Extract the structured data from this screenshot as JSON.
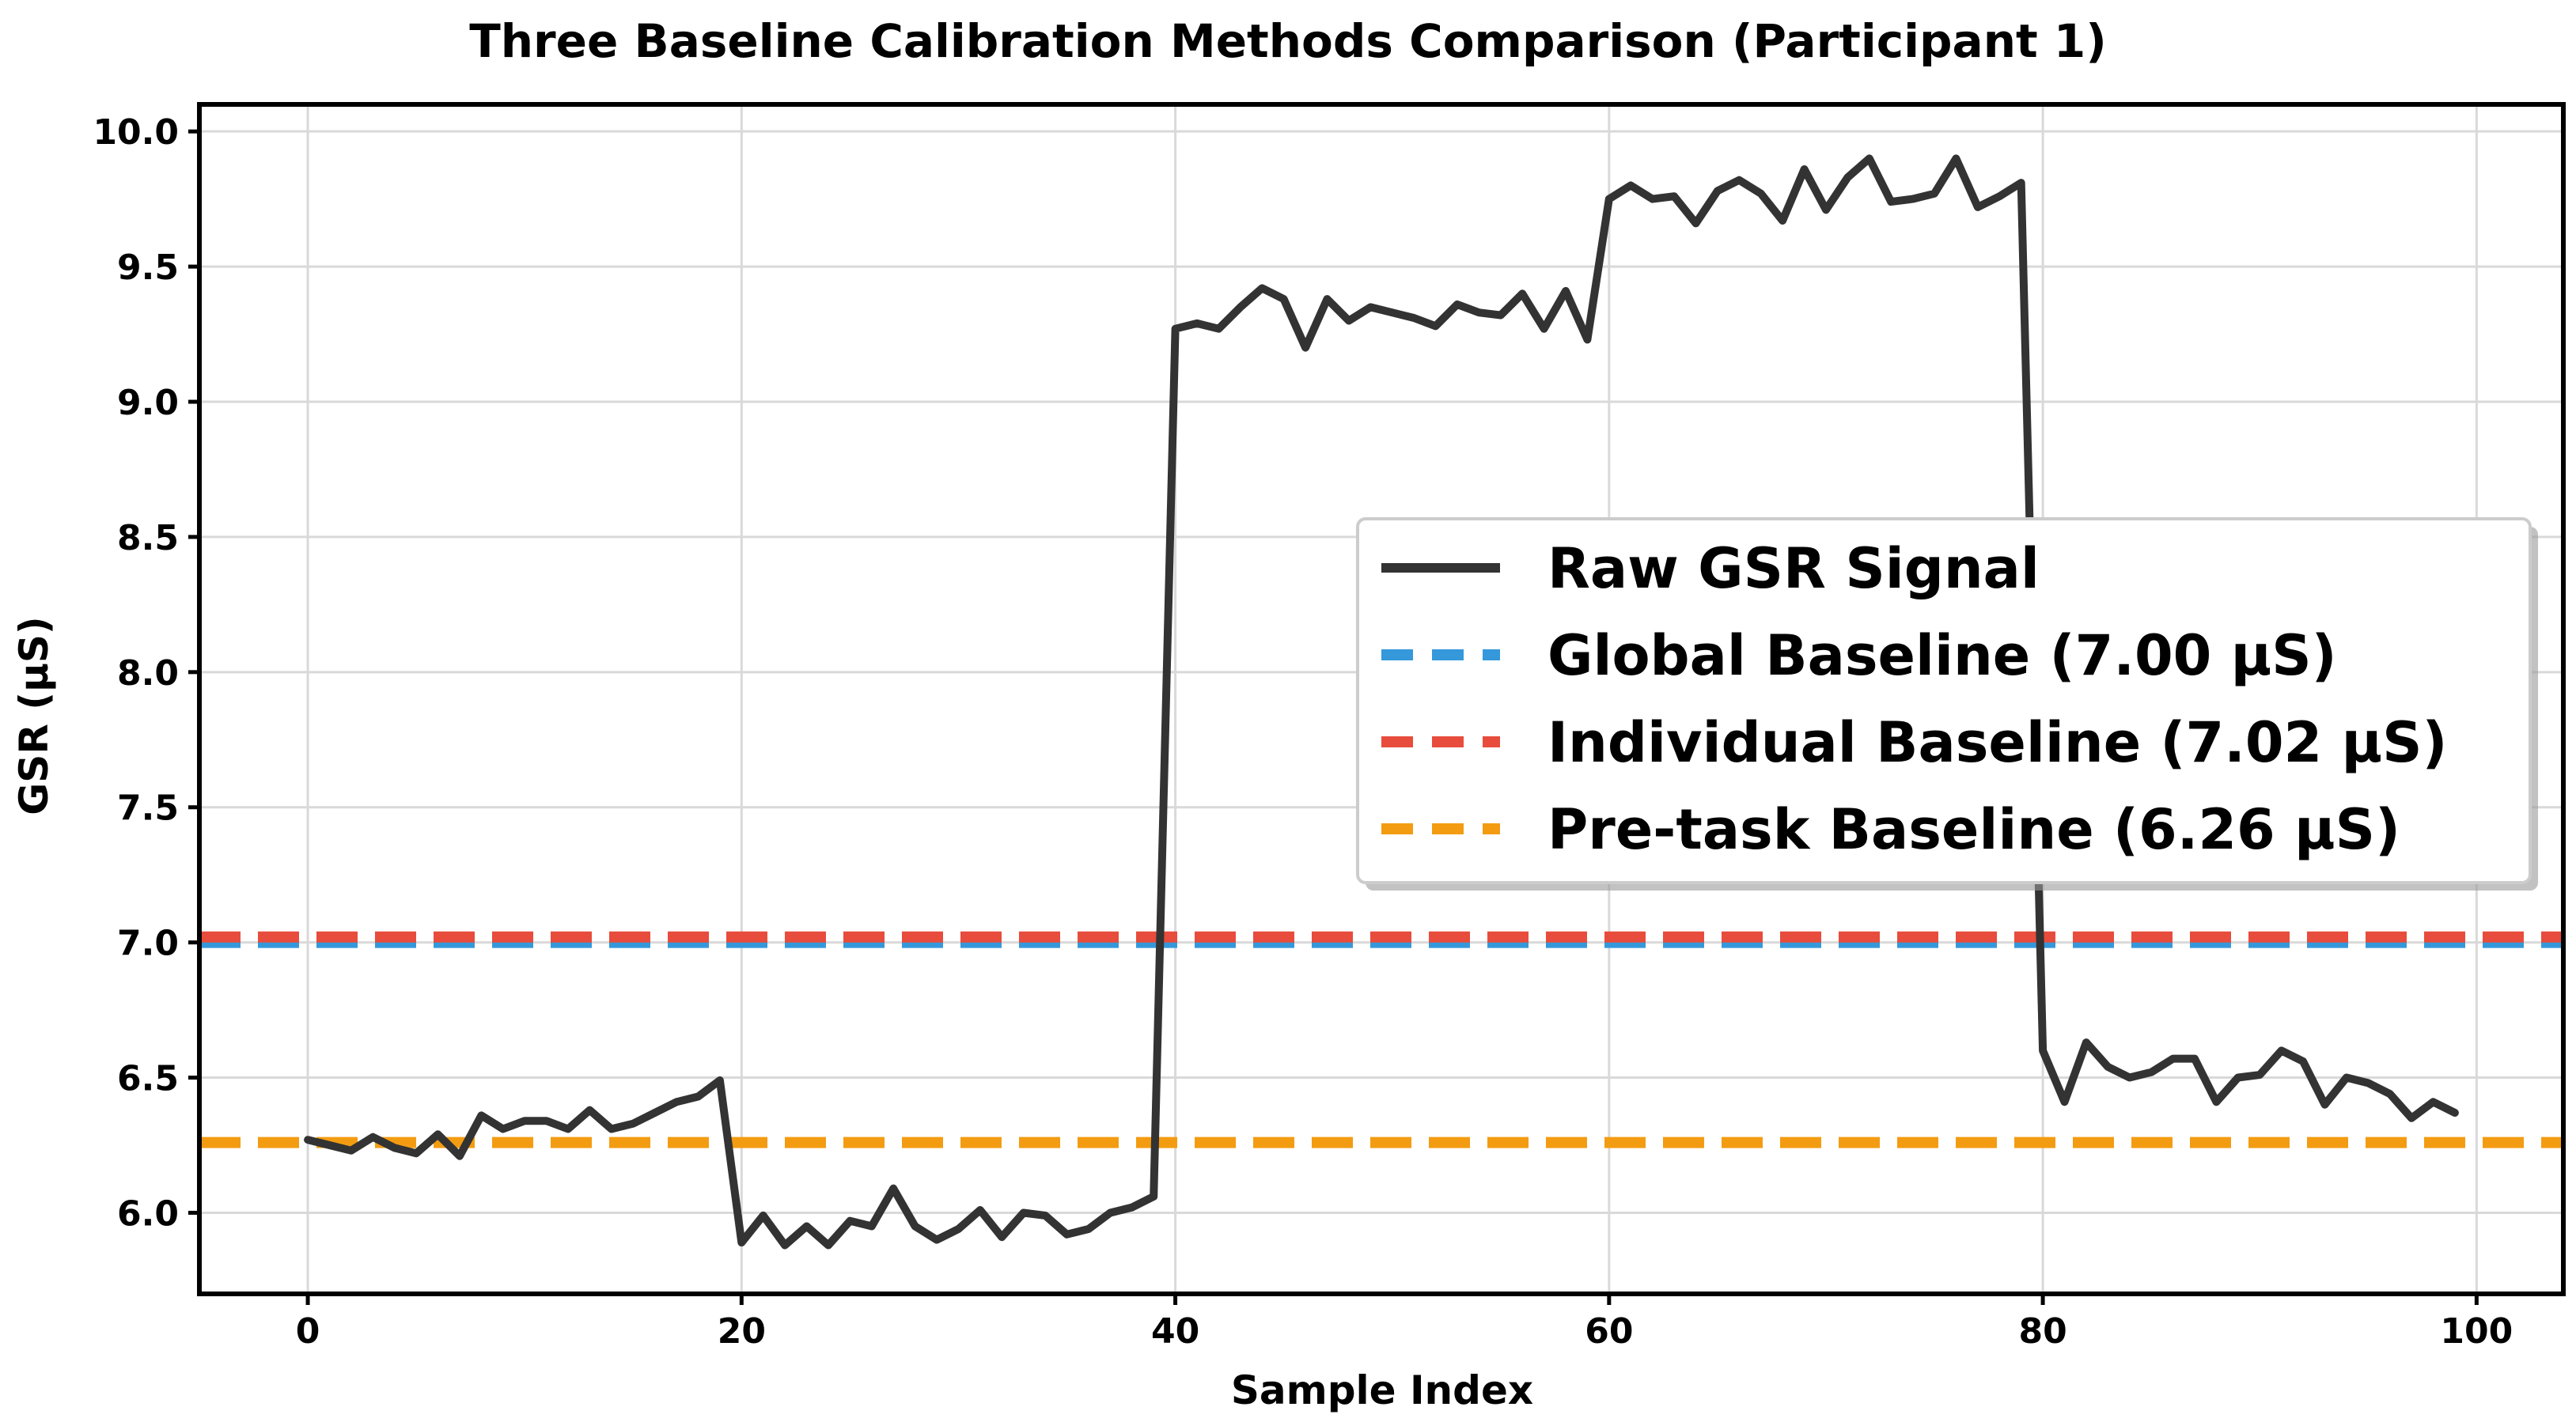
{
  "chart_data": {
    "type": "line",
    "title": "Three Baseline Calibration Methods Comparison (Participant 1)",
    "xlabel": "Sample Index",
    "ylabel": "GSR (μS)",
    "xlim": [
      -5,
      104
    ],
    "ylim": [
      5.7,
      10.1
    ],
    "xticks": [
      0,
      20,
      40,
      60,
      80,
      100
    ],
    "yticks": [
      6.0,
      6.5,
      7.0,
      7.5,
      8.0,
      8.5,
      9.0,
      9.5,
      10.0
    ],
    "xtick_labels": [
      "0",
      "20",
      "40",
      "60",
      "80",
      "100"
    ],
    "ytick_labels": [
      "6.0",
      "6.5",
      "7.0",
      "7.5",
      "8.0",
      "8.5",
      "9.0",
      "9.5",
      "10.0"
    ],
    "grid": true,
    "legend_position": "center-right",
    "series": [
      {
        "name": "Raw GSR Signal",
        "color": "#333333",
        "style": "solid",
        "x": [
          0,
          1,
          2,
          3,
          4,
          5,
          6,
          7,
          8,
          9,
          10,
          11,
          12,
          13,
          14,
          15,
          16,
          17,
          18,
          19,
          20,
          21,
          22,
          23,
          24,
          25,
          26,
          27,
          28,
          29,
          30,
          31,
          32,
          33,
          34,
          35,
          36,
          37,
          38,
          39,
          40,
          41,
          42,
          43,
          44,
          45,
          46,
          47,
          48,
          49,
          50,
          51,
          52,
          53,
          54,
          55,
          56,
          57,
          58,
          59,
          60,
          61,
          62,
          63,
          64,
          65,
          66,
          67,
          68,
          69,
          70,
          71,
          72,
          73,
          74,
          75,
          76,
          77,
          78,
          79,
          80,
          81,
          82,
          83,
          84,
          85,
          86,
          87,
          88,
          89,
          90,
          91,
          92,
          93,
          94,
          95,
          96,
          97,
          98,
          99
        ],
        "values": [
          6.27,
          6.25,
          6.23,
          6.28,
          6.24,
          6.22,
          6.29,
          6.21,
          6.36,
          6.31,
          6.34,
          6.34,
          6.31,
          6.38,
          6.31,
          6.33,
          6.37,
          6.41,
          6.43,
          6.49,
          5.89,
          5.99,
          5.88,
          5.95,
          5.88,
          5.97,
          5.95,
          6.09,
          5.95,
          5.9,
          5.94,
          6.01,
          5.91,
          6.0,
          5.99,
          5.92,
          5.94,
          6.0,
          6.02,
          6.06,
          9.27,
          9.29,
          9.27,
          9.35,
          9.42,
          9.38,
          9.2,
          9.38,
          9.3,
          9.35,
          9.33,
          9.31,
          9.28,
          9.36,
          9.33,
          9.32,
          9.4,
          9.27,
          9.41,
          9.23,
          9.75,
          9.8,
          9.75,
          9.76,
          9.66,
          9.78,
          9.82,
          9.77,
          9.67,
          9.86,
          9.71,
          9.83,
          9.9,
          9.74,
          9.75,
          9.77,
          9.9,
          9.72,
          9.76,
          9.81,
          6.6,
          6.41,
          6.63,
          6.54,
          6.5,
          6.52,
          6.57,
          6.57,
          6.41,
          6.5,
          6.51,
          6.6,
          6.56,
          6.4,
          6.5,
          6.48,
          6.44,
          6.35,
          6.41,
          6.37
        ]
      },
      {
        "name": "Global Baseline (7.00 μS)",
        "color": "#3498db",
        "style": "dashed",
        "value": 7.0
      },
      {
        "name": "Individual Baseline (7.02 μS)",
        "color": "#e74c3c",
        "style": "dashed",
        "value": 7.02
      },
      {
        "name": "Pre-task Baseline (6.26 μS)",
        "color": "#f39c12",
        "style": "dashed",
        "value": 6.26
      }
    ]
  }
}
